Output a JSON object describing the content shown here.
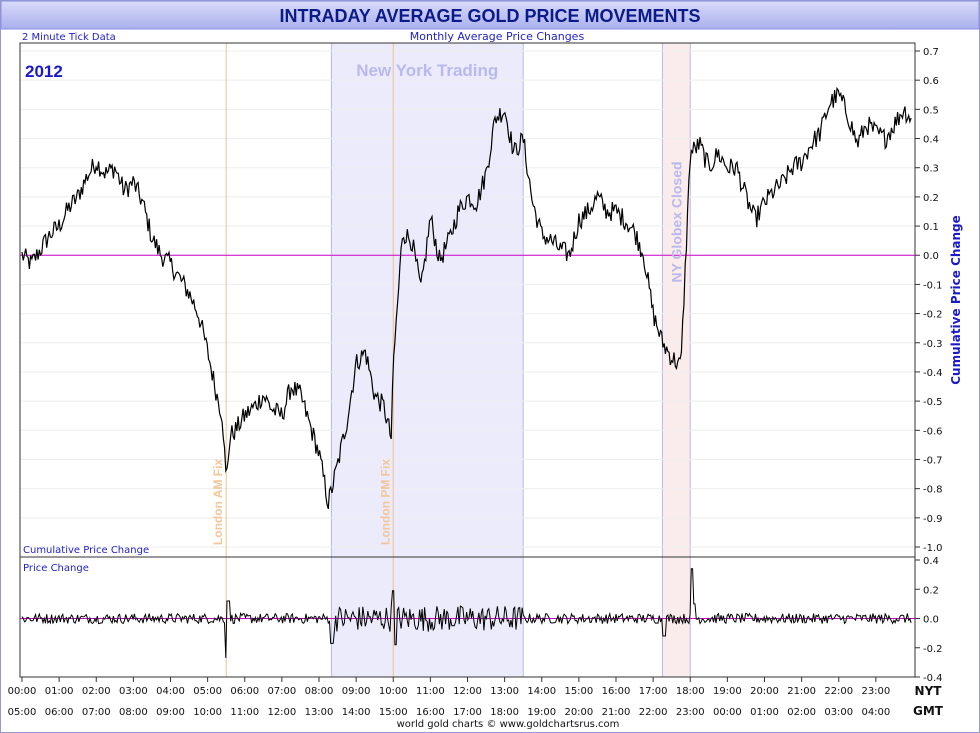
{
  "chart_data": {
    "type": "line",
    "title": "INTRADAY AVERAGE GOLD PRICE MOVEMENTS",
    "subtitle": "Monthly Average Price Changes",
    "tick_note": "2 Minute Tick Data",
    "year_label": "2012",
    "credit": "world gold charts © www.goldchartsrus.com",
    "colors": {
      "accent": "#0000cc",
      "zero_line": "#cc00cc",
      "trace": "#000000",
      "fix_line": "#f0c090",
      "ny_shade": "#ecebfb",
      "globex_shade": "#fbecec"
    },
    "regions": [
      {
        "label": "New York Trading",
        "x_start": "08:20",
        "x_end": "13:30"
      },
      {
        "label": "NY Globex Closed",
        "x_start": "17:15",
        "x_end": "18:00"
      }
    ],
    "vlines": [
      {
        "label": "London AM Fix",
        "x": "05:30"
      },
      {
        "label": "London PM Fix",
        "x": "10:00"
      }
    ],
    "x_axis": {
      "label_nyt": "NYT",
      "label_gmt": "GMT",
      "ticks_nyt": [
        "00:00",
        "01:00",
        "02:00",
        "03:00",
        "04:00",
        "05:00",
        "06:00",
        "07:00",
        "08:00",
        "09:00",
        "10:00",
        "11:00",
        "12:00",
        "13:00",
        "14:00",
        "15:00",
        "16:00",
        "17:00",
        "18:00",
        "19:00",
        "20:00",
        "21:00",
        "22:00",
        "23:00"
      ],
      "ticks_gmt": [
        "05:00",
        "06:00",
        "07:00",
        "08:00",
        "09:00",
        "10:00",
        "11:00",
        "12:00",
        "13:00",
        "14:00",
        "15:00",
        "16:00",
        "17:00",
        "18:00",
        "19:00",
        "20:00",
        "21:00",
        "22:00",
        "23:00",
        "00:00",
        "01:00",
        "02:00",
        "03:00",
        "04:00"
      ]
    },
    "panels": [
      {
        "name": "Cumulative Price Change",
        "ylabel": "Cumulative Price Change",
        "ylim": [
          -1.0,
          0.7
        ],
        "yticks": [
          "0.7",
          "0.6",
          "0.5",
          "0.4",
          "0.3",
          "0.2",
          "0.1",
          "0.0",
          "-0.1",
          "-0.2",
          "-0.3",
          "-0.4",
          "-0.5",
          "-0.6",
          "-0.7",
          "-0.8",
          "-0.9",
          "-1.0"
        ],
        "x_hours": [
          0,
          0.25,
          0.5,
          0.75,
          1,
          1.25,
          1.5,
          1.75,
          2,
          2.25,
          2.5,
          2.75,
          3,
          3.25,
          3.5,
          3.75,
          4,
          4.25,
          4.5,
          4.75,
          5,
          5.25,
          5.4,
          5.5,
          5.6,
          5.75,
          6,
          6.25,
          6.5,
          6.75,
          7,
          7.25,
          7.5,
          7.75,
          8,
          8.25,
          8.5,
          8.75,
          9,
          9.25,
          9.5,
          9.75,
          9.95,
          10,
          10.25,
          10.5,
          10.75,
          11,
          11.25,
          11.5,
          11.75,
          12,
          12.25,
          12.5,
          12.75,
          13,
          13.25,
          13.5,
          13.75,
          14,
          14.25,
          14.5,
          14.75,
          15,
          15.25,
          15.5,
          15.75,
          16,
          16.25,
          16.5,
          16.75,
          17,
          17.25,
          17.5,
          17.75,
          18,
          18.25,
          18.5,
          18.75,
          19,
          19.25,
          19.5,
          19.75,
          20,
          20.25,
          20.5,
          20.75,
          21,
          21.25,
          21.5,
          21.75,
          22,
          22.25,
          22.5,
          22.75,
          23,
          23.25,
          23.5,
          23.75,
          23.95
        ],
        "values": [
          0.0,
          -0.03,
          0.02,
          0.07,
          0.1,
          0.16,
          0.2,
          0.27,
          0.32,
          0.28,
          0.3,
          0.22,
          0.25,
          0.18,
          0.06,
          0.0,
          -0.03,
          -0.08,
          -0.13,
          -0.2,
          -0.33,
          -0.48,
          -0.55,
          -0.78,
          -0.62,
          -0.6,
          -0.55,
          -0.52,
          -0.48,
          -0.53,
          -0.55,
          -0.45,
          -0.48,
          -0.58,
          -0.68,
          -0.85,
          -0.72,
          -0.57,
          -0.37,
          -0.33,
          -0.48,
          -0.52,
          -0.63,
          -0.38,
          0.08,
          0.05,
          -0.12,
          0.13,
          -0.02,
          0.05,
          0.15,
          0.2,
          0.18,
          0.28,
          0.47,
          0.5,
          0.35,
          0.4,
          0.18,
          0.07,
          0.05,
          0.02,
          0.0,
          0.12,
          0.15,
          0.2,
          0.15,
          0.15,
          0.12,
          0.08,
          0.0,
          -0.2,
          -0.3,
          -0.35,
          -0.38,
          0.35,
          0.38,
          0.3,
          0.35,
          0.3,
          0.3,
          0.2,
          0.12,
          0.18,
          0.22,
          0.25,
          0.3,
          0.32,
          0.38,
          0.42,
          0.52,
          0.55,
          0.48,
          0.38,
          0.45,
          0.42,
          0.4,
          0.45,
          0.5,
          0.47
        ]
      },
      {
        "name": "Price Change",
        "ylim": [
          -0.4,
          0.4
        ],
        "yticks": [
          "0.4",
          "0.2",
          "0.0",
          "-0.2",
          "-0.4"
        ]
      }
    ]
  }
}
